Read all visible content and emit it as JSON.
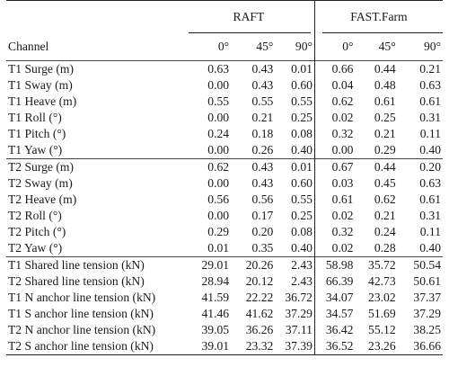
{
  "table": {
    "group_headers": {
      "raft": "RAFT",
      "fastfarm": "FAST.Farm"
    },
    "column_headers": {
      "channel": "Channel",
      "raft_cols": [
        "0°",
        "45°",
        "90°"
      ],
      "fast_cols": [
        "0°",
        "45°",
        "90°"
      ]
    },
    "sections": [
      {
        "rows": [
          {
            "label": "T1 Surge (m)",
            "values": [
              "0.63",
              "0.43",
              "0.01",
              "0.66",
              "0.44",
              "0.21"
            ]
          },
          {
            "label": "T1 Sway (m)",
            "values": [
              "0.00",
              "0.43",
              "0.60",
              "0.04",
              "0.48",
              "0.63"
            ]
          },
          {
            "label": "T1 Heave (m)",
            "values": [
              "0.55",
              "0.55",
              "0.55",
              "0.62",
              "0.61",
              "0.61"
            ]
          },
          {
            "label": "T1 Roll (°)",
            "values": [
              "0.00",
              "0.21",
              "0.25",
              "0.02",
              "0.25",
              "0.31"
            ]
          },
          {
            "label": "T1 Pitch (°)",
            "values": [
              "0.24",
              "0.18",
              "0.08",
              "0.32",
              "0.21",
              "0.11"
            ]
          },
          {
            "label": "T1 Yaw (°)",
            "values": [
              "0.00",
              "0.26",
              "0.40",
              "0.00",
              "0.29",
              "0.40"
            ]
          }
        ]
      },
      {
        "rows": [
          {
            "label": "T2 Surge (m)",
            "values": [
              "0.62",
              "0.43",
              "0.01",
              "0.67",
              "0.44",
              "0.20"
            ]
          },
          {
            "label": "T2 Sway (m)",
            "values": [
              "0.00",
              "0.43",
              "0.60",
              "0.03",
              "0.45",
              "0.63"
            ]
          },
          {
            "label": "T2 Heave (m)",
            "values": [
              "0.56",
              "0.56",
              "0.55",
              "0.61",
              "0.62",
              "0.61"
            ]
          },
          {
            "label": "T2 Roll (°)",
            "values": [
              "0.00",
              "0.17",
              "0.25",
              "0.02",
              "0.21",
              "0.31"
            ]
          },
          {
            "label": "T2 Pitch (°)",
            "values": [
              "0.29",
              "0.20",
              "0.08",
              "0.32",
              "0.24",
              "0.11"
            ]
          },
          {
            "label": "T2 Yaw (°)",
            "values": [
              "0.01",
              "0.35",
              "0.40",
              "0.02",
              "0.28",
              "0.40"
            ]
          }
        ]
      },
      {
        "rows": [
          {
            "label": "T1 Shared line tension (kN)",
            "values": [
              "29.01",
              "20.26",
              "2.43",
              "58.98",
              "35.72",
              "50.54"
            ]
          },
          {
            "label": "T2 Shared line tension (kN)",
            "values": [
              "28.94",
              "20.12",
              "2.43",
              "66.39",
              "42.73",
              "50.61"
            ]
          },
          {
            "label": "T1 N anchor line tension (kN)",
            "values": [
              "41.59",
              "22.22",
              "36.72",
              "34.07",
              "23.02",
              "37.37"
            ]
          },
          {
            "label": "T1 S anchor line tension (kN)",
            "values": [
              "41.46",
              "41.62",
              "37.29",
              "34.57",
              "51.69",
              "37.29"
            ]
          },
          {
            "label": "T2 N anchor line tension (kN)",
            "values": [
              "39.05",
              "36.26",
              "37.11",
              "36.42",
              "55.12",
              "38.25"
            ]
          },
          {
            "label": "T2 S anchor line tension (kN)",
            "values": [
              "39.01",
              "23.32",
              "37.39",
              "36.52",
              "23.26",
              "36.66"
            ]
          }
        ]
      }
    ]
  }
}
